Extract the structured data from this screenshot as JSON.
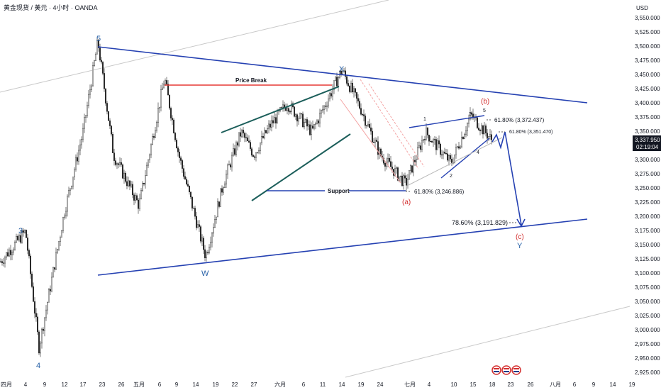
{
  "header": {
    "symbol_title": "黄金现货 / 美元 · 4小时 · OANDA"
  },
  "price_axis": {
    "currency": "USD",
    "current_price": "3,337.950",
    "countdown": "02:19:04"
  },
  "colors": {
    "trendline_blue": "#2541b2",
    "wedge_green": "#1b5e5a",
    "price_break_red": "#e53935",
    "fib_channel_red": "#f4a5a5",
    "outer_channel_gray": "#c8c8c8",
    "current_price_badge": "#131722"
  },
  "annotations": {
    "wave_5_top": "5",
    "wave_3": "3",
    "wave_4": "4",
    "wave_w": "W",
    "wave_x": "X",
    "wave_y": "Y",
    "wave_a": "(a)",
    "wave_b": "(b)",
    "wave_c": "(c)",
    "sub_1": "1",
    "sub_2": "2",
    "sub_3": "3",
    "sub_4": "4",
    "sub_5": "5",
    "price_break": "Price Break",
    "support": "Support",
    "fib_246": "61.80% (3,246.886)",
    "fib_372": "61.80% (3,372.437)",
    "fib_351": "61.80% (3,351.470)",
    "fib_191": "78.60% (3,191.829)"
  },
  "chart_data": {
    "type": "candlestick",
    "title": "黄金现货 / 美元 · 4小时 · OANDA",
    "y_axis": {
      "unit": "USD",
      "range": [
        2915,
        3560
      ],
      "ticks": [
        "3,550.000",
        "3,525.000",
        "3,500.000",
        "3,475.000",
        "3,450.000",
        "3,425.000",
        "3,400.000",
        "3,375.000",
        "3,350.000",
        "3,325.000",
        "3,300.000",
        "3,275.000",
        "3,250.000",
        "3,225.000",
        "3,200.000",
        "3,175.000",
        "3,150.000",
        "3,125.000",
        "3,100.000",
        "3,075.000",
        "3,050.000",
        "3,025.000",
        "3,000.000",
        "2,975.000",
        "2,950.000",
        "2,925.000"
      ]
    },
    "x_axis": {
      "ticks": [
        "四月",
        "4",
        "9",
        "12",
        "17",
        "23",
        "26",
        "五月",
        "6",
        "9",
        "14",
        "19",
        "22",
        "27",
        "六月",
        "6",
        "11",
        "14",
        "19",
        "24",
        "七月",
        "4",
        "10",
        "15",
        "18",
        "23",
        "26",
        "八月",
        "6",
        "9",
        "14",
        "19"
      ]
    },
    "grid": false,
    "price_path_pivots": [
      {
        "date": "四月",
        "price": 3110
      },
      {
        "date": "4",
        "price": 3165
      },
      {
        "date": "9",
        "price": 2960
      },
      {
        "date": "12",
        "price": 3200
      },
      {
        "date": "17",
        "price": 3340
      },
      {
        "date": "23",
        "price": 3500
      },
      {
        "date": "26",
        "price": 3300
      },
      {
        "date": "五月",
        "price": 3210
      },
      {
        "date": "6",
        "price": 3435
      },
      {
        "date": "9",
        "price": 3300
      },
      {
        "date": "14",
        "price": 3120
      },
      {
        "date": "19",
        "price": 3250
      },
      {
        "date": "22",
        "price": 3340
      },
      {
        "date": "27",
        "price": 3300
      },
      {
        "date": "六月",
        "price": 3350
      },
      {
        "date": "6",
        "price": 3390
      },
      {
        "date": "11",
        "price": 3340
      },
      {
        "date": "14",
        "price": 3450
      },
      {
        "date": "19",
        "price": 3380
      },
      {
        "date": "24",
        "price": 3300
      },
      {
        "date": "七月",
        "price": 3248
      },
      {
        "date": "4",
        "price": 3340
      },
      {
        "date": "10",
        "price": 3285
      },
      {
        "date": "15",
        "price": 3370
      },
      {
        "date": "18",
        "price": 3325
      }
    ]
  }
}
